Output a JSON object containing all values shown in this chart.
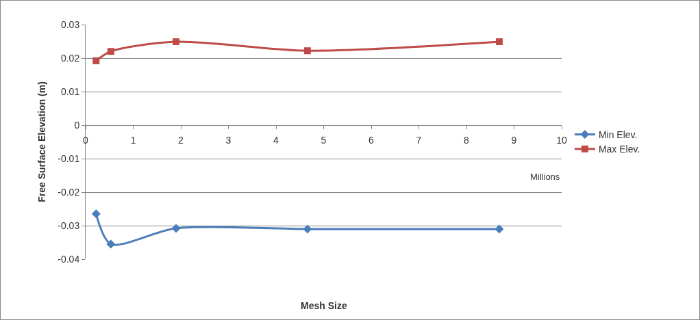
{
  "chart_data": {
    "type": "line",
    "xlabel": "Mesh Size",
    "ylabel": "Free Surface Elevation (m)",
    "annotations": [
      "Millions"
    ],
    "series": [
      {
        "name": "Min Elev.",
        "color": "#4a7ebb",
        "marker": "diamond",
        "x": [
          0.22,
          0.53,
          1.9,
          4.66,
          8.69
        ],
        "values": [
          -0.0265,
          -0.0355,
          -0.0308,
          -0.031,
          -0.031
        ]
      },
      {
        "name": "Max Elev.",
        "color": "#be4b48",
        "marker": "square",
        "x": [
          0.22,
          0.53,
          1.9,
          4.66,
          8.69
        ],
        "values": [
          0.0192,
          0.022,
          0.0249,
          0.0222,
          0.0249
        ]
      }
    ],
    "xlim": [
      0,
      10
    ],
    "xticks": [
      0,
      1,
      2,
      3,
      4,
      5,
      6,
      7,
      8,
      9,
      10
    ],
    "ylim": [
      -0.04,
      0.03
    ],
    "yticks": [
      {
        "value": -0.04,
        "label": "-0.04"
      },
      {
        "value": -0.03,
        "label": "-0.03"
      },
      {
        "value": -0.02,
        "label": "-0.02"
      },
      {
        "value": -0.01,
        "label": "-0.01"
      },
      0,
      {
        "value": 0.01,
        "label": "0.01"
      },
      {
        "value": 0.02,
        "label": "0.02"
      },
      {
        "value": 0.03,
        "label": "0.03"
      }
    ],
    "grid": "y",
    "legend": "right",
    "line_style": "solid"
  }
}
